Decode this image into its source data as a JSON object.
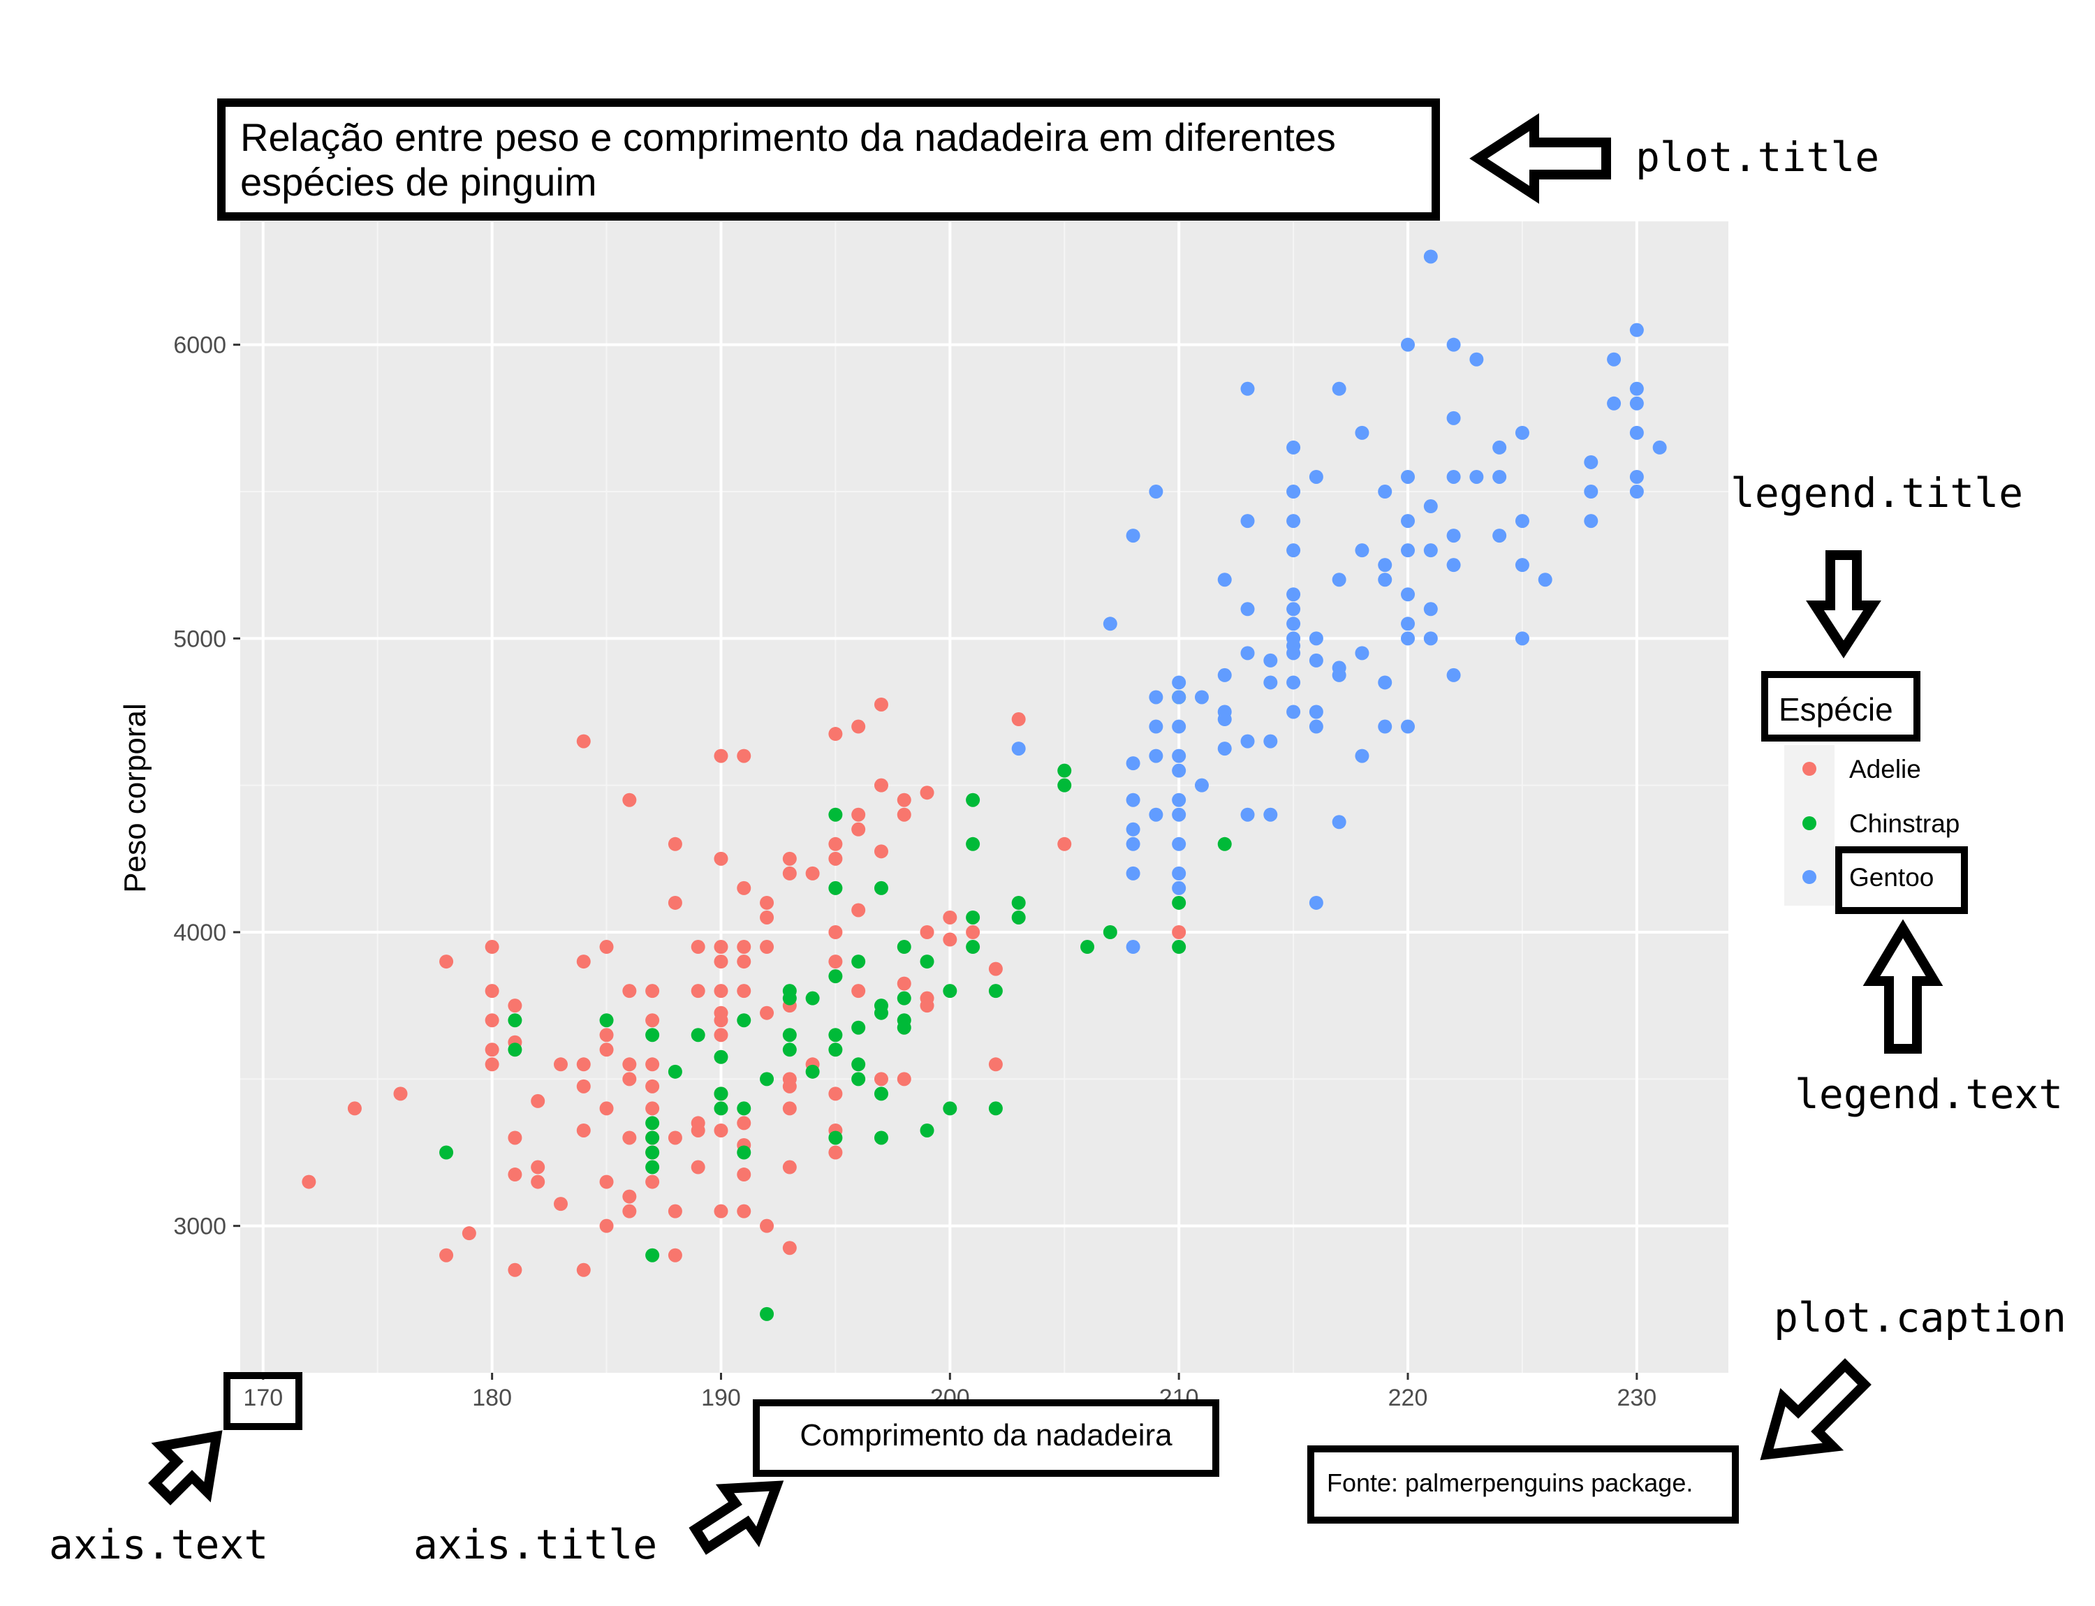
{
  "chart_data": {
    "type": "scatter",
    "title": "Relação entre peso e comprimento da nadadeira em diferentes espécies de pinguim",
    "xlabel": "Comprimento da nadadeira",
    "ylabel": "Peso corporal",
    "caption": "Fonte: palmerpenguins package.",
    "xlim": [
      169,
      234
    ],
    "ylim": [
      2500,
      6420
    ],
    "x_ticks": [
      170,
      180,
      190,
      200,
      210,
      220,
      230
    ],
    "y_ticks": [
      3000,
      4000,
      5000,
      6000
    ],
    "grid": true,
    "legend": {
      "title": "Espécie",
      "position": "right"
    },
    "series": [
      {
        "name": "Adelie",
        "color": "#F8766D",
        "points": [
          [
            172,
            3150
          ],
          [
            174,
            3400
          ],
          [
            176,
            3450
          ],
          [
            178,
            3900
          ],
          [
            178,
            2900
          ],
          [
            179,
            2975
          ],
          [
            180,
            3950
          ],
          [
            180,
            3800
          ],
          [
            180,
            3700
          ],
          [
            180,
            3600
          ],
          [
            180,
            3550
          ],
          [
            181,
            3750
          ],
          [
            181,
            3625
          ],
          [
            181,
            3300
          ],
          [
            181,
            3175
          ],
          [
            181,
            2850
          ],
          [
            182,
            3425
          ],
          [
            182,
            3200
          ],
          [
            182,
            3150
          ],
          [
            183,
            3550
          ],
          [
            183,
            3075
          ],
          [
            184,
            4650
          ],
          [
            184,
            3900
          ],
          [
            184,
            3550
          ],
          [
            184,
            3475
          ],
          [
            184,
            3325
          ],
          [
            184,
            2850
          ],
          [
            185,
            3950
          ],
          [
            185,
            3650
          ],
          [
            185,
            3600
          ],
          [
            185,
            3400
          ],
          [
            185,
            3150
          ],
          [
            185,
            3000
          ],
          [
            186,
            4450
          ],
          [
            186,
            3800
          ],
          [
            186,
            3550
          ],
          [
            186,
            3500
          ],
          [
            186,
            3300
          ],
          [
            186,
            3100
          ],
          [
            186,
            3050
          ],
          [
            187,
            3800
          ],
          [
            187,
            3700
          ],
          [
            187,
            3550
          ],
          [
            187,
            3475
          ],
          [
            187,
            3400
          ],
          [
            187,
            3300
          ],
          [
            187,
            3250
          ],
          [
            187,
            3150
          ],
          [
            188,
            4300
          ],
          [
            188,
            4100
          ],
          [
            188,
            3300
          ],
          [
            188,
            3050
          ],
          [
            188,
            2900
          ],
          [
            189,
            3950
          ],
          [
            189,
            3800
          ],
          [
            189,
            3350
          ],
          [
            189,
            3325
          ],
          [
            189,
            3200
          ],
          [
            190,
            4600
          ],
          [
            190,
            4250
          ],
          [
            190,
            3950
          ],
          [
            190,
            3900
          ],
          [
            190,
            3800
          ],
          [
            190,
            3725
          ],
          [
            190,
            3700
          ],
          [
            190,
            3650
          ],
          [
            190,
            3450
          ],
          [
            190,
            3325
          ],
          [
            190,
            3050
          ],
          [
            191,
            4600
          ],
          [
            191,
            4150
          ],
          [
            191,
            3950
          ],
          [
            191,
            3900
          ],
          [
            191,
            3800
          ],
          [
            191,
            3350
          ],
          [
            191,
            3275
          ],
          [
            191,
            3175
          ],
          [
            191,
            3050
          ],
          [
            192,
            4100
          ],
          [
            192,
            4050
          ],
          [
            192,
            3950
          ],
          [
            192,
            3725
          ],
          [
            192,
            3000
          ],
          [
            193,
            4250
          ],
          [
            193,
            4200
          ],
          [
            193,
            3750
          ],
          [
            193,
            3500
          ],
          [
            193,
            3475
          ],
          [
            193,
            3400
          ],
          [
            193,
            3200
          ],
          [
            193,
            2925
          ],
          [
            194,
            4200
          ],
          [
            194,
            3550
          ],
          [
            195,
            4675
          ],
          [
            195,
            4300
          ],
          [
            195,
            4250
          ],
          [
            195,
            4000
          ],
          [
            195,
            3900
          ],
          [
            195,
            3450
          ],
          [
            195,
            3325
          ],
          [
            195,
            3250
          ],
          [
            196,
            4700
          ],
          [
            196,
            4400
          ],
          [
            196,
            4350
          ],
          [
            196,
            4075
          ],
          [
            196,
            3800
          ],
          [
            197,
            4775
          ],
          [
            197,
            4500
          ],
          [
            197,
            4275
          ],
          [
            197,
            3500
          ],
          [
            198,
            4450
          ],
          [
            198,
            4400
          ],
          [
            198,
            3825
          ],
          [
            198,
            3500
          ],
          [
            199,
            4475
          ],
          [
            199,
            4000
          ],
          [
            199,
            3775
          ],
          [
            199,
            3750
          ],
          [
            200,
            4050
          ],
          [
            200,
            3975
          ],
          [
            201,
            4000
          ],
          [
            202,
            3875
          ],
          [
            202,
            3550
          ],
          [
            203,
            4725
          ],
          [
            205,
            4300
          ],
          [
            210,
            4000
          ]
        ]
      },
      {
        "name": "Chinstrap",
        "color": "#00BA38",
        "points": [
          [
            178,
            3250
          ],
          [
            181,
            3700
          ],
          [
            181,
            3600
          ],
          [
            185,
            3700
          ],
          [
            187,
            3650
          ],
          [
            187,
            3350
          ],
          [
            187,
            3300
          ],
          [
            187,
            3250
          ],
          [
            187,
            3200
          ],
          [
            187,
            2900
          ],
          [
            188,
            3525
          ],
          [
            189,
            3650
          ],
          [
            190,
            3575
          ],
          [
            190,
            3450
          ],
          [
            190,
            3400
          ],
          [
            191,
            3700
          ],
          [
            191,
            3400
          ],
          [
            191,
            3250
          ],
          [
            192,
            3500
          ],
          [
            192,
            2700
          ],
          [
            193,
            3800
          ],
          [
            193,
            3775
          ],
          [
            193,
            3650
          ],
          [
            193,
            3600
          ],
          [
            194,
            3775
          ],
          [
            194,
            3525
          ],
          [
            195,
            4400
          ],
          [
            195,
            4150
          ],
          [
            195,
            3850
          ],
          [
            195,
            3650
          ],
          [
            195,
            3600
          ],
          [
            195,
            3300
          ],
          [
            196,
            3900
          ],
          [
            196,
            3675
          ],
          [
            196,
            3550
          ],
          [
            196,
            3500
          ],
          [
            197,
            4150
          ],
          [
            197,
            3750
          ],
          [
            197,
            3725
          ],
          [
            197,
            3450
          ],
          [
            197,
            3300
          ],
          [
            198,
            3950
          ],
          [
            198,
            3775
          ],
          [
            198,
            3700
          ],
          [
            198,
            3675
          ],
          [
            199,
            3900
          ],
          [
            199,
            3325
          ],
          [
            200,
            3800
          ],
          [
            200,
            3400
          ],
          [
            201,
            4450
          ],
          [
            201,
            4300
          ],
          [
            201,
            4050
          ],
          [
            201,
            3950
          ],
          [
            202,
            3800
          ],
          [
            202,
            3400
          ],
          [
            203,
            4100
          ],
          [
            203,
            4050
          ],
          [
            205,
            4550
          ],
          [
            205,
            4500
          ],
          [
            206,
            3950
          ],
          [
            207,
            4000
          ],
          [
            210,
            4800
          ],
          [
            210,
            4100
          ],
          [
            210,
            3950
          ],
          [
            212,
            4300
          ]
        ]
      },
      {
        "name": "Gentoo",
        "color": "#619CFF",
        "points": [
          [
            203,
            4625
          ],
          [
            207,
            5050
          ],
          [
            208,
            5350
          ],
          [
            208,
            4575
          ],
          [
            208,
            4450
          ],
          [
            208,
            4350
          ],
          [
            208,
            4300
          ],
          [
            208,
            4200
          ],
          [
            208,
            3950
          ],
          [
            209,
            5500
          ],
          [
            209,
            4800
          ],
          [
            209,
            4700
          ],
          [
            209,
            4600
          ],
          [
            209,
            4400
          ],
          [
            210,
            4850
          ],
          [
            210,
            4800
          ],
          [
            210,
            4700
          ],
          [
            210,
            4600
          ],
          [
            210,
            4550
          ],
          [
            210,
            4450
          ],
          [
            210,
            4400
          ],
          [
            210,
            4300
          ],
          [
            210,
            4200
          ],
          [
            210,
            4150
          ],
          [
            211,
            4800
          ],
          [
            211,
            4500
          ],
          [
            212,
            5200
          ],
          [
            212,
            4875
          ],
          [
            212,
            4750
          ],
          [
            212,
            4725
          ],
          [
            212,
            4625
          ],
          [
            213,
            5850
          ],
          [
            213,
            5400
          ],
          [
            213,
            5100
          ],
          [
            213,
            4950
          ],
          [
            213,
            4650
          ],
          [
            213,
            4400
          ],
          [
            214,
            4925
          ],
          [
            214,
            4850
          ],
          [
            214,
            4650
          ],
          [
            214,
            4400
          ],
          [
            215,
            5650
          ],
          [
            215,
            5500
          ],
          [
            215,
            5400
          ],
          [
            215,
            5300
          ],
          [
            215,
            5150
          ],
          [
            215,
            5100
          ],
          [
            215,
            5050
          ],
          [
            215,
            5000
          ],
          [
            215,
            4975
          ],
          [
            215,
            4950
          ],
          [
            215,
            4850
          ],
          [
            215,
            4750
          ],
          [
            216,
            5550
          ],
          [
            216,
            5000
          ],
          [
            216,
            4925
          ],
          [
            216,
            4750
          ],
          [
            216,
            4700
          ],
          [
            216,
            4100
          ],
          [
            217,
            5850
          ],
          [
            217,
            5200
          ],
          [
            217,
            4900
          ],
          [
            217,
            4875
          ],
          [
            217,
            4375
          ],
          [
            218,
            5700
          ],
          [
            218,
            5300
          ],
          [
            218,
            4950
          ],
          [
            218,
            4600
          ],
          [
            219,
            5500
          ],
          [
            219,
            5250
          ],
          [
            219,
            5200
          ],
          [
            219,
            4850
          ],
          [
            219,
            4700
          ],
          [
            220,
            6000
          ],
          [
            220,
            5550
          ],
          [
            220,
            5400
          ],
          [
            220,
            5300
          ],
          [
            220,
            5150
          ],
          [
            220,
            5050
          ],
          [
            220,
            5000
          ],
          [
            220,
            4700
          ],
          [
            221,
            6300
          ],
          [
            221,
            5450
          ],
          [
            221,
            5300
          ],
          [
            221,
            5100
          ],
          [
            221,
            5000
          ],
          [
            222,
            6000
          ],
          [
            222,
            5750
          ],
          [
            222,
            5550
          ],
          [
            222,
            5350
          ],
          [
            222,
            5250
          ],
          [
            222,
            4875
          ],
          [
            223,
            5950
          ],
          [
            223,
            5550
          ],
          [
            224,
            5650
          ],
          [
            224,
            5550
          ],
          [
            224,
            5350
          ],
          [
            225,
            5700
          ],
          [
            225,
            5400
          ],
          [
            225,
            5250
          ],
          [
            225,
            5000
          ],
          [
            226,
            5200
          ],
          [
            228,
            5600
          ],
          [
            228,
            5500
          ],
          [
            228,
            5400
          ],
          [
            229,
            5950
          ],
          [
            229,
            5800
          ],
          [
            230,
            6050
          ],
          [
            230,
            5850
          ],
          [
            230,
            5800
          ],
          [
            230,
            5700
          ],
          [
            230,
            5550
          ],
          [
            230,
            5500
          ],
          [
            231,
            5650
          ]
        ]
      }
    ]
  },
  "annotations": [
    {
      "id": "plot-title",
      "label": "plot.title"
    },
    {
      "id": "legend-title",
      "label": "legend.title"
    },
    {
      "id": "legend-text",
      "label": "legend.text"
    },
    {
      "id": "plot-caption",
      "label": "plot.caption"
    },
    {
      "id": "axis-text",
      "label": "axis.text"
    },
    {
      "id": "axis-title",
      "label": "axis.title"
    }
  ]
}
